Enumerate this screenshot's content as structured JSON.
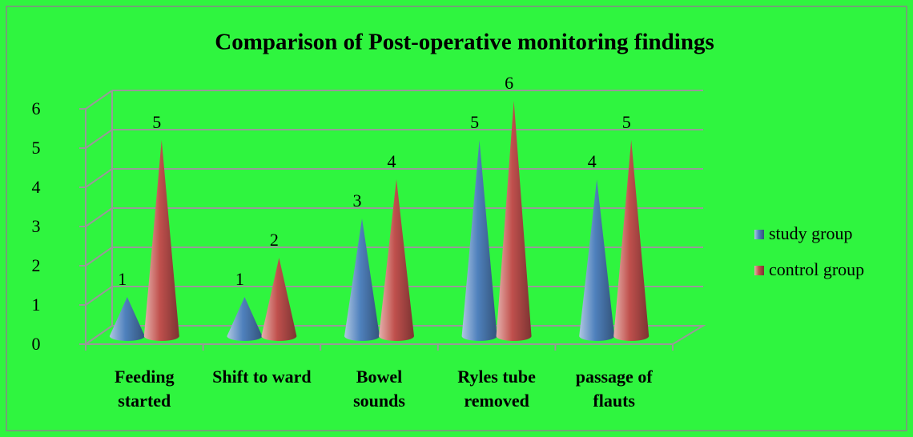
{
  "chart_data": {
    "type": "bar",
    "title": "Comparison of Post-operative monitoring findings",
    "categories": [
      "Feeding started",
      "Shift to ward",
      "Bowel sounds",
      "Ryles tube removed",
      "passage of flauts"
    ],
    "series": [
      {
        "name": "study group",
        "color": "#4f81bd",
        "values": [
          1,
          1,
          3,
          5,
          4
        ]
      },
      {
        "name": "control group",
        "color": "#c0504d",
        "values": [
          5,
          2,
          4,
          6,
          5
        ]
      }
    ],
    "ylim": [
      0,
      6
    ],
    "yticks": [
      0,
      1,
      2,
      3,
      4,
      5,
      6
    ],
    "grid": true,
    "legend": "right"
  }
}
